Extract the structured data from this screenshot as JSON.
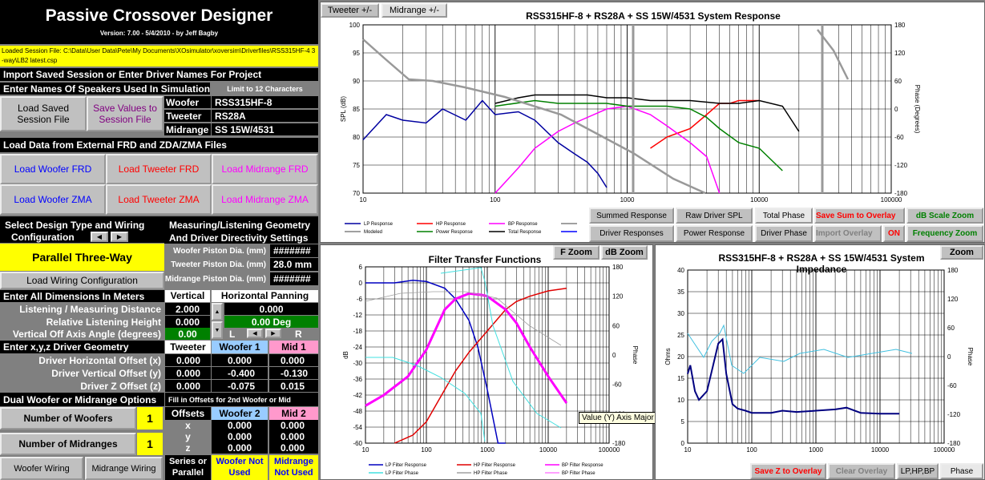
{
  "app": {
    "title": "Passive Crossover Designer",
    "version": "Version: 7.00  -  5/4/2010  -  by Jeff Bagby",
    "session_file": "Loaded Session File: C:\\Data\\User Data\\Pete\\My Documents\\XOsimulator\\xoversim\\Driverfiles\\RSS315HF-4 3-way\\LB2 latest.csp"
  },
  "import": {
    "header": "Import Saved Session or Enter Driver Names For Project",
    "names_label": "Enter Names Of Speakers Used In Simulation",
    "limit_label": "Limit to 12 Characters",
    "load_session": "Load Saved Session File",
    "save_values": "Save Values to Session File"
  },
  "drivers": {
    "woofer_label": "Woofer",
    "woofer": "RSS315HF-8",
    "tweeter_label": "Tweeter",
    "tweeter": "RS28A",
    "midrange_label": "Midrange",
    "midrange": "SS 15W/4531"
  },
  "load_data": {
    "header": "Load Data from External FRD and ZDA/ZMA Files",
    "woofer_frd": "Load Woofer FRD",
    "tweeter_frd": "Load Tweeter FRD",
    "midrange_frd": "Load Midrange FRD",
    "woofer_zma": "Load Woofer ZMA",
    "tweeter_zma": "Load Tweeter ZMA",
    "midrange_zma": "Load Midrange ZMA"
  },
  "design": {
    "header1": "Select Design Type and Wiring",
    "header2": "Configuration",
    "type": "Parallel Three-Way",
    "load_wiring": "Load Wiring Configuration",
    "geom1": "Measuring/Listening Geometry",
    "geom2": "And Driver Directivity Settings",
    "woofer_piston_label": "Woofer Piston Dia. (mm)",
    "woofer_piston": "#######",
    "tweeter_piston_label": "Tweeter Piston Dia. (mm)",
    "tweeter_piston": "28.0 mm",
    "mid_piston_label": "Midrange Piston Dia. (mm)",
    "mid_piston": "#######"
  },
  "dims": {
    "header": "Enter All Dimensions In Meters",
    "vertical": "Vertical",
    "horizontal": "Horizontal Panning",
    "listen_label": "Listening / Measuring  Distance",
    "listen": "2.000",
    "listen_h": "0.000",
    "height_label": "Relative Listening Height",
    "height": "0.000",
    "pan": "0.00 Deg",
    "off_axis_label": "Vertical Off Axis Angle (degrees)",
    "off_axis": "0.00",
    "L": "L",
    "R": "R"
  },
  "geom": {
    "header": "Enter x,y,z Driver Geometry",
    "col_tweeter": "Tweeter",
    "col_woofer": "Woofer 1",
    "col_mid": "Mid 1",
    "rows": [
      {
        "label": "Driver Horizontal Offset (x)",
        "t": "0.000",
        "w": "0.000",
        "m": "0.000"
      },
      {
        "label": "Driver Vertical Offset (y)",
        "t": "0.000",
        "w": "-0.400",
        "m": "-0.130"
      },
      {
        "label": "Driver Z Offset (z)",
        "t": "0.000",
        "w": "-0.075",
        "m": "0.015"
      }
    ]
  },
  "dual": {
    "header": "Dual Woofer or Midrange Options",
    "fill_label": "Fill in Offsets for 2nd Woofer or Mid",
    "num_woofers_label": "Number of Woofers",
    "num_woofers": "1",
    "num_mids_label": "Number of Midranges",
    "num_mids": "1",
    "offsets": "Offsets",
    "col_w2": "Woofer 2",
    "col_m2": "Mid 2",
    "x": "x",
    "y": "y",
    "z": "z",
    "xv": "0.000",
    "yv": "0.000",
    "zv": "0.000",
    "xm": "0.000",
    "ym": "0.000",
    "zm": "0.000",
    "woofer_wiring": "Woofer Wiring",
    "mid_wiring": "Midrange Wiring",
    "series_label": "Series or Parallel",
    "w2_state": "Woofer Not Used",
    "m2_state": "Midrange Not Used"
  },
  "tabs": {
    "tweeter": "Tweeter +/-",
    "midrange": "Midrange  +/-"
  },
  "spl_chart": {
    "title": "RSS315HF-8 + RS28A + SS 15W/4531  System Response",
    "ylabel": "SPL (dB)",
    "y2label": "Phase (Degrees)",
    "yticks": [
      "100",
      "95",
      "90",
      "85",
      "80",
      "75",
      "70"
    ],
    "y2ticks": [
      "180",
      "120",
      "60",
      "0",
      "-60",
      "-120",
      "-180"
    ],
    "xticks": [
      "10",
      "100",
      "1000",
      "10000",
      "100000"
    ],
    "legend": [
      "LP Response",
      "HP Response",
      "BP Response",
      "",
      "Modeled",
      "Power Response",
      "Total Response",
      ""
    ]
  },
  "spl_buttons": {
    "summed": "Summed Response",
    "raw": "Raw Driver SPL",
    "total_phase": "Total Phase",
    "save_sum": "Save Sum to Overlay",
    "db_zoom": "dB Scale Zoom",
    "driver_resp": "Driver Responses",
    "power_resp": "Power Response",
    "driver_phase": "Driver Phase",
    "import_overlay": "Import Overlay",
    "on": "ON",
    "freq_zoom": "Frequency Zoom"
  },
  "filter_chart": {
    "title": "Filter Transfer Functions",
    "ylabel": "dB",
    "y2label": "Phase",
    "yticks": [
      "6",
      "0",
      "-6",
      "-12",
      "-18",
      "-24",
      "-30",
      "-36",
      "-42",
      "-48",
      "-54",
      "-60"
    ],
    "y2ticks": [
      "180",
      "120",
      "60",
      "0",
      "-60",
      "-120",
      "-180"
    ],
    "xticks": [
      "10",
      "100",
      "1000",
      "10000",
      "100000"
    ],
    "fzoom": "F Zoom",
    "dbzoom": "dB Zoom",
    "tooltip": "Value (Y) Axis Major Gridlines",
    "legend": [
      "LP Filter Response",
      "HP Filter Response",
      "BP Filter Response",
      "LP Filter Phase",
      "HP Filter Phase",
      "BP Filter Phase"
    ]
  },
  "imp_chart": {
    "title": "RSS315HF-8 + RS28A + SS 15W/4531  System Impedance",
    "ylabel": "Ohms",
    "y2label": "Phase",
    "yticks": [
      "40",
      "35",
      "30",
      "25",
      "20",
      "15",
      "10",
      "5",
      "0"
    ],
    "y2ticks": [
      "180",
      "120",
      "60",
      "0",
      "-60",
      "-120",
      "-180"
    ],
    "xticks": [
      "10",
      "100",
      "1000",
      "10000",
      "100000"
    ],
    "zoom": "Zoom",
    "save_z": "Save Z to Overlay",
    "clear": "Clear Overlay",
    "lphpbp": "LP,HP,BP",
    "phase": "Phase"
  },
  "chart_data": [
    {
      "type": "line",
      "title": "RSS315HF-8 + RS28A + SS 15W/4531  System Response",
      "xlabel": "",
      "ylabel": "SPL (dB)",
      "xscale": "log",
      "xlim": [
        10,
        100000
      ],
      "ylim": [
        70,
        100
      ],
      "y2lim": [
        -180,
        180
      ],
      "series": [
        {
          "name": "LP Response",
          "x": [
            10,
            15,
            20,
            30,
            40,
            60,
            80,
            100,
            150,
            200,
            300,
            400,
            500,
            600,
            700
          ],
          "values": [
            79.5,
            84,
            83,
            82.5,
            85,
            83,
            86.5,
            84,
            84.5,
            83,
            79,
            77,
            75.5,
            73.5,
            71
          ]
        },
        {
          "name": "HP Response",
          "x": [
            1500,
            2000,
            3000,
            4000,
            5000,
            6000,
            7000,
            8000,
            10000
          ],
          "values": [
            78,
            80,
            81.5,
            84,
            86,
            86,
            86.5,
            86.5,
            86.5
          ]
        },
        {
          "name": "BP Response",
          "x": [
            100,
            150,
            200,
            300,
            400,
            500,
            700,
            1000,
            1500,
            2000,
            3000,
            4000,
            5000
          ],
          "values": [
            70,
            74.5,
            78,
            81,
            82.5,
            83.5,
            85,
            85.5,
            84,
            82,
            79,
            76.5,
            70
          ]
        },
        {
          "name": "Power Response",
          "x": [
            100,
            200,
            300,
            500,
            700,
            1000,
            2000,
            3000,
            4000,
            5000,
            7000,
            10000,
            15000
          ],
          "values": [
            85.5,
            86.5,
            86,
            86,
            86,
            85.5,
            85.5,
            85,
            83.5,
            81.5,
            79,
            78,
            74
          ]
        },
        {
          "name": "Total Response",
          "x": [
            100,
            150,
            200,
            300,
            500,
            700,
            1000,
            1500,
            2000,
            3000,
            5000,
            7000,
            10000,
            15000,
            20000
          ],
          "values": [
            86,
            87,
            87.5,
            87.5,
            87.5,
            87,
            87,
            86.5,
            86.5,
            86.5,
            86,
            86,
            86.5,
            85.5,
            81
          ]
        }
      ]
    },
    {
      "type": "line",
      "title": "Filter Transfer Functions",
      "xlabel": "",
      "ylabel": "dB",
      "xscale": "log",
      "xlim": [
        10,
        100000
      ],
      "ylim": [
        -60,
        6
      ],
      "series": [
        {
          "name": "LP Filter Response",
          "x": [
            10,
            30,
            60,
            100,
            200,
            300,
            500,
            700,
            1000,
            1500,
            2000
          ],
          "values": [
            0,
            0,
            1,
            0.5,
            -2,
            -6,
            -14,
            -24,
            -40,
            -60,
            -60
          ]
        },
        {
          "name": "HP Filter Response",
          "x": [
            30,
            60,
            100,
            200,
            300,
            500,
            1000,
            2000,
            3000,
            5000,
            10000,
            20000
          ],
          "values": [
            -60,
            -57,
            -52,
            -40,
            -33,
            -26,
            -18,
            -10,
            -7,
            -5,
            -3,
            -2
          ]
        },
        {
          "name": "BP Filter Response",
          "x": [
            10,
            20,
            50,
            100,
            200,
            300,
            500,
            800,
            1000,
            2000,
            3000,
            5000,
            10000,
            20000
          ],
          "values": [
            -46,
            -42,
            -35,
            -25,
            -10,
            -6,
            -4,
            -4.5,
            -5,
            -10,
            -15,
            -24,
            -35,
            -45
          ]
        }
      ]
    },
    {
      "type": "line",
      "title": "RSS315HF-8 + RS28A + SS 15W/4531  System Impedance",
      "xlabel": "",
      "ylabel": "Ohms",
      "xscale": "log",
      "xlim": [
        10,
        100000
      ],
      "ylim": [
        0,
        40
      ],
      "series": [
        {
          "name": "Impedance",
          "x": [
            10,
            11,
            13,
            15,
            20,
            25,
            30,
            35,
            40,
            50,
            60,
            80,
            100,
            200,
            300,
            500,
            1000,
            2000,
            3000,
            5000,
            10000,
            20000
          ],
          "values": [
            16,
            18,
            12,
            10,
            12,
            18,
            23,
            24,
            16,
            9,
            8,
            7.5,
            7,
            7,
            7.5,
            7.2,
            7.5,
            7.8,
            8.2,
            7,
            6.8,
            6.8
          ]
        }
      ]
    }
  ]
}
